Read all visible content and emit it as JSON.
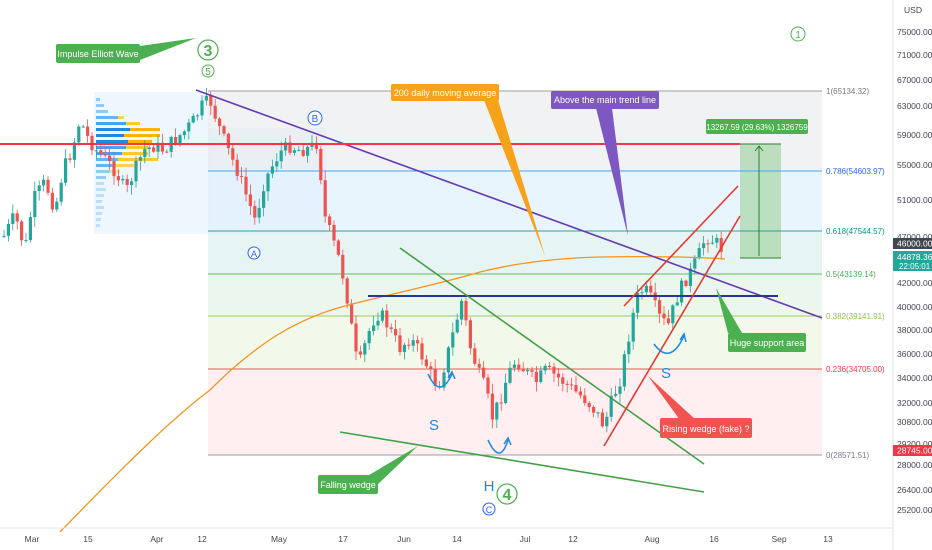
{
  "chart_data": {
    "type": "candlestick",
    "title": "",
    "currency": "USD",
    "x_ticks": [
      "Mar",
      "15",
      "Apr",
      "12",
      "May",
      "17",
      "Jun",
      "14",
      "Jul",
      "12",
      "Aug",
      "16",
      "Sep",
      "13"
    ],
    "y_ticks": [
      "75000.00",
      "71000.00",
      "67000.00",
      "63000.00",
      "59000.00",
      "55000.00",
      "51000.00",
      "47000.00",
      "42000.00",
      "40000.00",
      "38000.00",
      "36000.00",
      "34000.00",
      "32000.00",
      "30800.00",
      "29200.00",
      "28000.00",
      "26400.00",
      "25200.00"
    ],
    "price_labels": {
      "high": "46000.00",
      "last": "44878.36",
      "countdown": "22:05:01",
      "low": "28745.00"
    },
    "fib_levels": [
      {
        "label": "1(65134.32)",
        "color": "#787b86"
      },
      {
        "label": "0.786(54603.97)",
        "color": "#2962ff"
      },
      {
        "label": "0.618(47544.57)",
        "color": "#089981"
      },
      {
        "label": "0.5(43139.14)",
        "color": "#4caf50"
      },
      {
        "label": "0.382(39141.91)",
        "color": "#8bc34a"
      },
      {
        "label": "0.236(34705.00)",
        "color": "#f23645"
      },
      {
        "label": "0(28571.51)",
        "color": "#787b86"
      }
    ],
    "measure_label": "13267.59 (29.63%) 1326759",
    "annotations": [
      {
        "text": "Impulse Elliott Wave",
        "color": "#4caf50"
      },
      {
        "text": "200 daily moving average",
        "color": "#f7a21b"
      },
      {
        "text": "Above the main trend line",
        "color": "#7e57c2"
      },
      {
        "text": "Huge support area",
        "color": "#4caf50"
      },
      {
        "text": "Rising wedge (fake) ?",
        "color": "#f05350"
      },
      {
        "text": "Falling wedge",
        "color": "#4caf50"
      }
    ],
    "wave_labels": [
      {
        "text": "3",
        "color": "#4caf50"
      },
      {
        "text": "5",
        "color": "#4caf50"
      },
      {
        "text": "1",
        "color": "#4caf50"
      },
      {
        "text": "4",
        "color": "#4caf50"
      },
      {
        "text": "B",
        "color": "#2962ff"
      },
      {
        "text": "A",
        "color": "#2962ff"
      },
      {
        "text": "C",
        "color": "#2962ff"
      }
    ],
    "pattern_labels": [
      {
        "text": "S",
        "color": "#2962ff"
      },
      {
        "text": "H",
        "color": "#2962ff"
      },
      {
        "text": "S",
        "color": "#2962ff"
      }
    ],
    "colors": {
      "up": "#26a69a",
      "down": "#ef5350",
      "ma": "#f7931a",
      "trendline": "#673ab7",
      "resistance": "#f23645",
      "support": "#283593",
      "wedge_green": "#43a047",
      "wedge_red": "#e53935"
    }
  }
}
